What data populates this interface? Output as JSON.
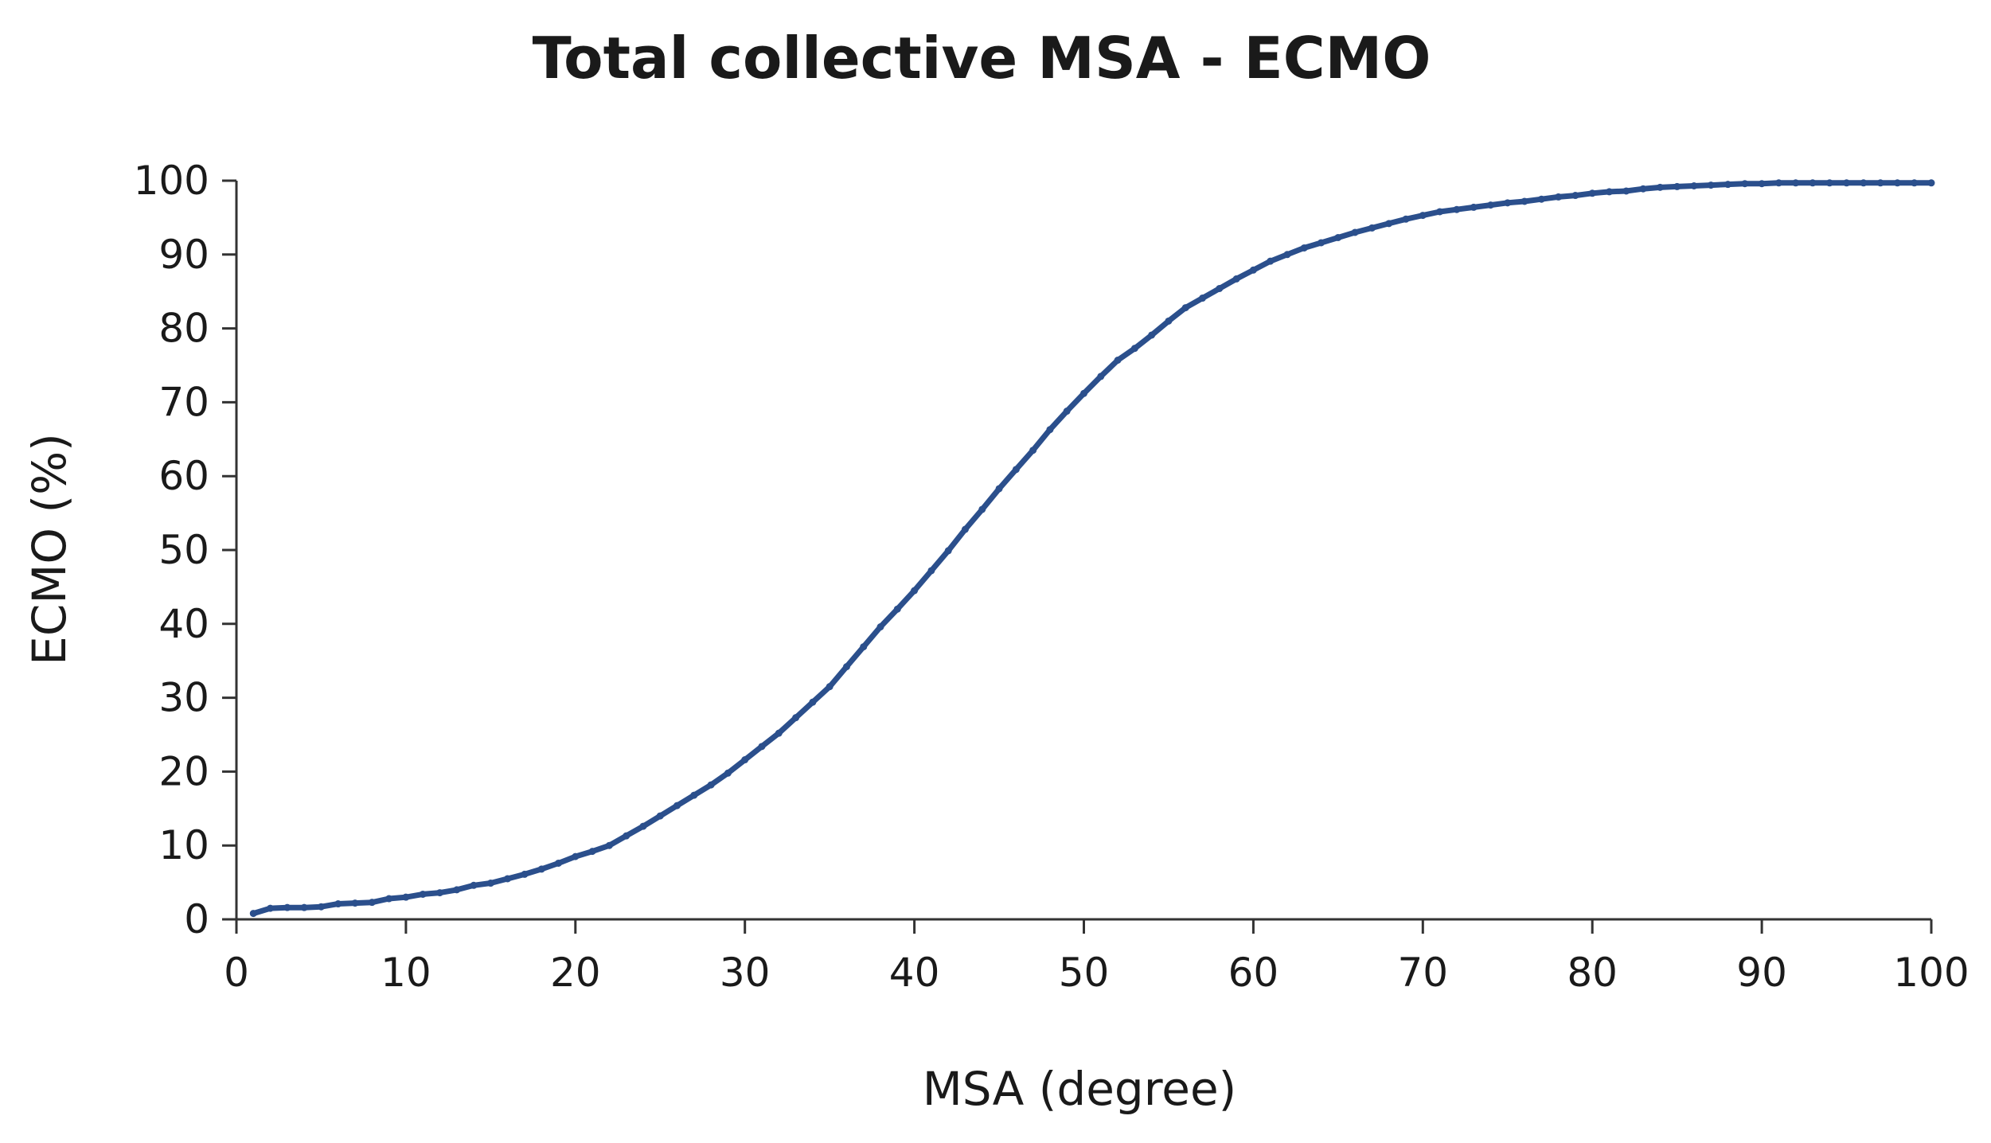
{
  "chart_data": {
    "type": "line",
    "title": "Total collective MSA  - ECMO",
    "xlabel": "MSA (degree)",
    "ylabel": "ECMO (%)",
    "xlim": [
      0,
      100
    ],
    "ylim": [
      0,
      100
    ],
    "x_ticks": [
      "0",
      "10",
      "20",
      "30",
      "40",
      "50",
      "60",
      "70",
      "80",
      "90",
      "100"
    ],
    "y_ticks": [
      "0",
      "10",
      "20",
      "30",
      "40",
      "50",
      "60",
      "70",
      "80",
      "90",
      "100"
    ],
    "grid": false,
    "series": [
      {
        "name": "ECMO",
        "color": "#2b4f8c",
        "x": [
          1,
          2,
          3,
          4,
          5,
          6,
          7,
          8,
          9,
          10,
          11,
          12,
          13,
          14,
          15,
          16,
          17,
          18,
          19,
          20,
          21,
          22,
          23,
          24,
          25,
          26,
          27,
          28,
          29,
          30,
          31,
          32,
          33,
          34,
          35,
          36,
          37,
          38,
          39,
          40,
          41,
          42,
          43,
          44,
          45,
          46,
          47,
          48,
          49,
          50,
          51,
          52,
          53,
          54,
          55,
          56,
          57,
          58,
          59,
          60,
          61,
          62,
          63,
          64,
          65,
          66,
          67,
          68,
          69,
          70,
          71,
          72,
          73,
          74,
          75,
          76,
          77,
          78,
          79,
          80,
          81,
          82,
          83,
          84,
          85,
          86,
          87,
          88,
          89,
          90,
          91,
          92,
          93,
          94,
          95,
          96,
          97,
          98,
          99,
          100
        ],
        "values": [
          0.8,
          1.5,
          1.6,
          1.6,
          1.7,
          2.1,
          2.2,
          2.3,
          2.8,
          3.0,
          3.4,
          3.6,
          4.0,
          4.6,
          4.9,
          5.5,
          6.1,
          6.8,
          7.6,
          8.5,
          9.2,
          10.0,
          11.3,
          12.6,
          14.0,
          15.4,
          16.8,
          18.2,
          19.8,
          21.6,
          23.4,
          25.2,
          27.3,
          29.4,
          31.5,
          34.2,
          36.9,
          39.6,
          42.0,
          44.5,
          47.2,
          49.9,
          52.8,
          55.5,
          58.3,
          60.9,
          63.5,
          66.3,
          68.8,
          71.2,
          73.5,
          75.7,
          77.3,
          79.1,
          81.0,
          82.8,
          84.1,
          85.4,
          86.7,
          87.9,
          89.1,
          90.0,
          90.9,
          91.6,
          92.3,
          93.0,
          93.6,
          94.2,
          94.8,
          95.3,
          95.8,
          96.1,
          96.4,
          96.7,
          97.0,
          97.2,
          97.5,
          97.8,
          98.0,
          98.3,
          98.5,
          98.6,
          98.9,
          99.1,
          99.2,
          99.3,
          99.4,
          99.5,
          99.6,
          99.6,
          99.7,
          99.7,
          99.7,
          99.7,
          99.7,
          99.7,
          99.7,
          99.7,
          99.7,
          99.7
        ]
      }
    ]
  }
}
